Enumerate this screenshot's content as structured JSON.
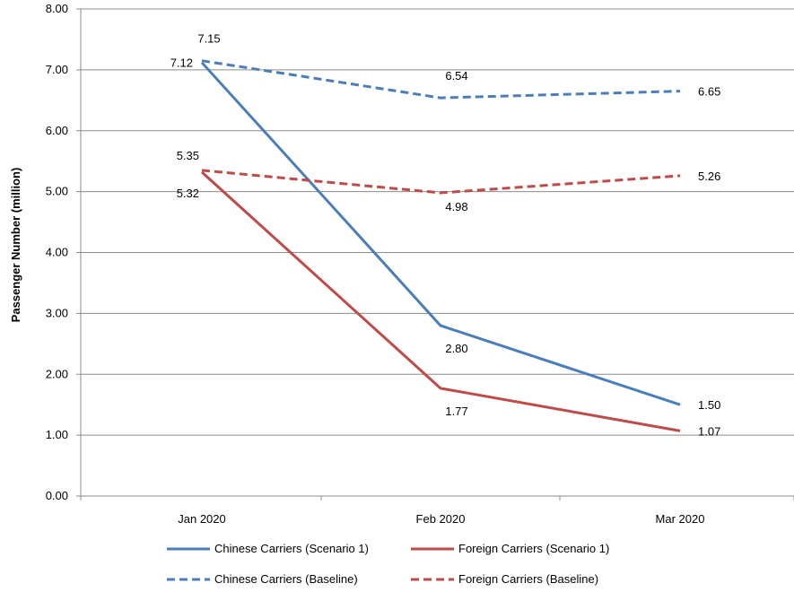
{
  "chart_data": {
    "type": "line",
    "categories": [
      "Jan 2020",
      "Feb 2020",
      "Mar 2020"
    ],
    "ylabel": "Passenger Number (million)",
    "ylim": [
      0,
      8
    ],
    "yticks": [
      "0.00",
      "1.00",
      "2.00",
      "3.00",
      "4.00",
      "5.00",
      "6.00",
      "7.00",
      "8.00"
    ],
    "grid": "horizontal",
    "legend_position": "bottom",
    "series": [
      {
        "name": "Chinese Carriers (Scenario 1)",
        "values": [
          7.12,
          2.8,
          1.5
        ],
        "labels": [
          "7.12",
          "2.80",
          "1.50"
        ],
        "color": "#4A7EBB",
        "dashed": false
      },
      {
        "name": "Foreign Carriers (Scenario 1)",
        "values": [
          5.32,
          1.77,
          1.07
        ],
        "labels": [
          "5.32",
          "1.77",
          "1.07"
        ],
        "color": "#BE4B48",
        "dashed": false
      },
      {
        "name": "Chinese Carriers (Baseline)",
        "values": [
          7.15,
          6.54,
          6.65
        ],
        "labels": [
          "7.15",
          "6.54",
          "6.65"
        ],
        "color": "#4A7EBB",
        "dashed": true
      },
      {
        "name": "Foreign Carriers (Baseline)",
        "values": [
          5.35,
          4.98,
          5.26
        ],
        "labels": [
          "5.35",
          "4.98",
          "5.26"
        ],
        "color": "#BE4B48",
        "dashed": true
      }
    ]
  }
}
